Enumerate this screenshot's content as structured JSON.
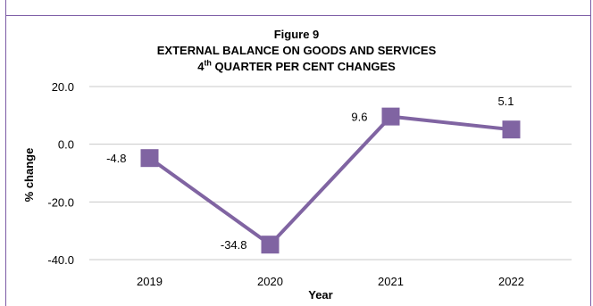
{
  "chart_data": {
    "type": "line",
    "title": {
      "figure_label": "Figure 9",
      "line1": "EXTERNAL BALANCE ON GOODS AND SERVICES",
      "line2_prefix": "4",
      "line2_superscript": "th",
      "line2_suffix": " QUARTER PER CENT CHANGES"
    },
    "xlabel": "Year",
    "ylabel": "%  change",
    "categories": [
      "2019",
      "2020",
      "2021",
      "2022"
    ],
    "series": [
      {
        "values": [
          -4.8,
          -34.8,
          9.6,
          5.1
        ],
        "color": "#8064a2"
      }
    ],
    "data_labels": [
      "-4.8",
      "-34.8",
      "9.6",
      "5.1"
    ],
    "ylim": [
      -40,
      20
    ],
    "yticks": [
      {
        "value": 20,
        "label": "20.0"
      },
      {
        "value": 0,
        "label": "0.0"
      },
      {
        "value": -20,
        "label": "-20.0"
      },
      {
        "value": -40,
        "label": "-40.0"
      }
    ],
    "grid": true
  }
}
